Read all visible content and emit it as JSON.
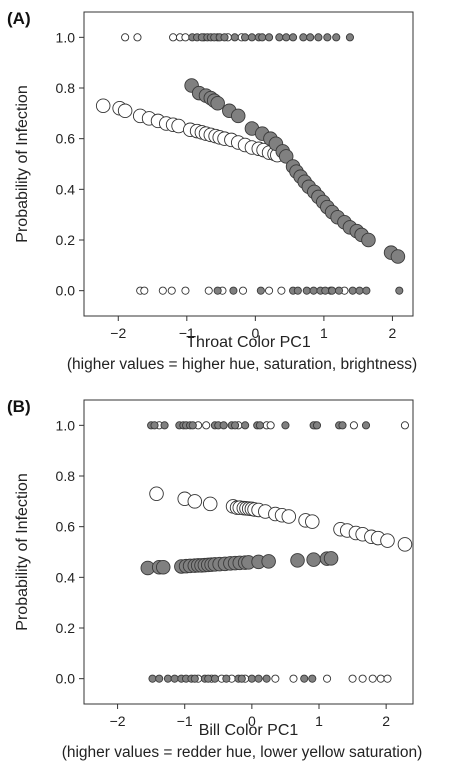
{
  "chart_data": [
    {
      "panel_label": "(A)",
      "type": "scatter",
      "xlabel": "Throat Color PC1",
      "xlabel_note": "(higher values = higher hue, saturation, brightness)",
      "ylabel": "Probability of Infection",
      "xlim": [
        -2.5,
        2.3
      ],
      "ylim": [
        -0.1,
        1.1
      ],
      "xticks": [
        -2,
        -1,
        0,
        1,
        2
      ],
      "yticks": [
        0.0,
        0.2,
        0.4,
        0.6,
        0.8,
        1.0
      ],
      "ytick_labels": [
        "0.0",
        "0.2",
        "0.4",
        "0.6",
        "0.8",
        "1.0"
      ],
      "grid": false,
      "series": [
        {
          "color": "#ffffff",
          "role": "predicted",
          "points": [
            [
              -2.22,
              0.73
            ],
            [
              -1.98,
              0.72
            ],
            [
              -1.9,
              0.71
            ],
            [
              -1.68,
              0.69
            ],
            [
              -1.55,
              0.68
            ],
            [
              -1.42,
              0.67
            ],
            [
              -1.3,
              0.66
            ],
            [
              -1.2,
              0.655
            ],
            [
              -1.12,
              0.65
            ],
            [
              -0.95,
              0.635
            ],
            [
              -0.85,
              0.63
            ],
            [
              -0.78,
              0.625
            ],
            [
              -0.72,
              0.62
            ],
            [
              -0.65,
              0.615
            ],
            [
              -0.58,
              0.61
            ],
            [
              -0.52,
              0.605
            ],
            [
              -0.45,
              0.6
            ],
            [
              -0.35,
              0.595
            ],
            [
              -0.25,
              0.585
            ],
            [
              -0.15,
              0.575
            ],
            [
              -0.05,
              0.565
            ],
            [
              0.05,
              0.56
            ],
            [
              0.12,
              0.555
            ],
            [
              0.2,
              0.545
            ],
            [
              0.28,
              0.54
            ],
            [
              0.32,
              0.535
            ]
          ]
        },
        {
          "color": "#808080",
          "role": "predicted",
          "points": [
            [
              -0.93,
              0.81
            ],
            [
              -0.82,
              0.78
            ],
            [
              -0.72,
              0.77
            ],
            [
              -0.65,
              0.76
            ],
            [
              -0.6,
              0.75
            ],
            [
              -0.55,
              0.74
            ],
            [
              -0.38,
              0.71
            ],
            [
              -0.25,
              0.69
            ],
            [
              -0.05,
              0.64
            ],
            [
              0.1,
              0.62
            ],
            [
              0.22,
              0.6
            ],
            [
              0.3,
              0.58
            ],
            [
              0.4,
              0.55
            ],
            [
              0.45,
              0.53
            ],
            [
              0.55,
              0.49
            ],
            [
              0.6,
              0.47
            ],
            [
              0.66,
              0.45
            ],
            [
              0.72,
              0.43
            ],
            [
              0.78,
              0.41
            ],
            [
              0.86,
              0.39
            ],
            [
              0.92,
              0.37
            ],
            [
              0.99,
              0.35
            ],
            [
              1.05,
              0.33
            ],
            [
              1.12,
              0.31
            ],
            [
              1.2,
              0.29
            ],
            [
              1.3,
              0.27
            ],
            [
              1.38,
              0.25
            ],
            [
              1.48,
              0.235
            ],
            [
              1.55,
              0.22
            ],
            [
              1.65,
              0.2
            ],
            [
              1.98,
              0.15
            ],
            [
              2.08,
              0.135
            ]
          ]
        },
        {
          "color": "#ffffff",
          "role": "observed",
          "points": [
            [
              -1.9,
              1.0
            ],
            [
              -1.2,
              1.0
            ],
            [
              -1.1,
              1.0
            ],
            [
              -1.02,
              1.0
            ],
            [
              -0.75,
              1.0
            ],
            [
              -0.55,
              1.0
            ],
            [
              -0.4,
              1.0
            ],
            [
              -0.2,
              1.0
            ],
            [
              -1.72,
              1.0
            ],
            [
              -1.68,
              0.0
            ],
            [
              -1.62,
              0.0
            ],
            [
              -1.35,
              0.0
            ],
            [
              -1.22,
              0.0
            ],
            [
              -1.02,
              0.0
            ],
            [
              -0.68,
              0.0
            ],
            [
              -0.48,
              0.0
            ],
            [
              -0.18,
              0.0
            ],
            [
              0.2,
              0.0
            ],
            [
              0.38,
              0.0
            ],
            [
              1.1,
              0.0
            ],
            [
              1.3,
              0.0
            ]
          ]
        },
        {
          "color": "#808080",
          "role": "observed",
          "points": [
            [
              -0.92,
              1.0
            ],
            [
              -0.85,
              1.0
            ],
            [
              -0.78,
              1.0
            ],
            [
              -0.7,
              1.0
            ],
            [
              -0.65,
              1.0
            ],
            [
              -0.6,
              1.0
            ],
            [
              -0.52,
              1.0
            ],
            [
              -0.45,
              1.0
            ],
            [
              -0.3,
              1.0
            ],
            [
              -0.15,
              1.0
            ],
            [
              -0.05,
              1.0
            ],
            [
              0.05,
              1.0
            ],
            [
              0.1,
              1.0
            ],
            [
              0.2,
              1.0
            ],
            [
              0.35,
              1.0
            ],
            [
              0.45,
              1.0
            ],
            [
              0.55,
              1.0
            ],
            [
              0.7,
              1.0
            ],
            [
              0.8,
              1.0
            ],
            [
              0.92,
              1.0
            ],
            [
              1.05,
              1.0
            ],
            [
              1.18,
              1.0
            ],
            [
              1.38,
              1.0
            ],
            [
              -0.55,
              0.0
            ],
            [
              -0.32,
              0.0
            ],
            [
              0.08,
              0.0
            ],
            [
              0.55,
              0.0
            ],
            [
              0.62,
              0.0
            ],
            [
              0.75,
              0.0
            ],
            [
              0.85,
              0.0
            ],
            [
              0.95,
              0.0
            ],
            [
              1.02,
              0.0
            ],
            [
              1.12,
              0.0
            ],
            [
              1.22,
              0.0
            ],
            [
              1.42,
              0.0
            ],
            [
              1.52,
              0.0
            ],
            [
              1.62,
              0.0
            ],
            [
              2.1,
              0.0
            ]
          ]
        }
      ]
    },
    {
      "panel_label": "(B)",
      "type": "scatter",
      "xlabel": "Bill Color PC1",
      "xlabel_note": "(higher values = redder hue, lower yellow saturation)",
      "ylabel": "Probability of Infection",
      "xlim": [
        -2.5,
        2.4
      ],
      "ylim": [
        -0.1,
        1.1
      ],
      "xticks": [
        -2,
        -1,
        0,
        1,
        2
      ],
      "yticks": [
        0.0,
        0.2,
        0.4,
        0.6,
        0.8,
        1.0
      ],
      "ytick_labels": [
        "0.0",
        "0.2",
        "0.4",
        "0.6",
        "0.8",
        "1.0"
      ],
      "grid": false,
      "series": [
        {
          "color": "#ffffff",
          "role": "predicted",
          "points": [
            [
              -1.42,
              0.73
            ],
            [
              -1.0,
              0.71
            ],
            [
              -0.85,
              0.7
            ],
            [
              -0.62,
              0.69
            ],
            [
              -0.28,
              0.68
            ],
            [
              -0.22,
              0.675
            ],
            [
              -0.18,
              0.675
            ],
            [
              -0.12,
              0.673
            ],
            [
              -0.08,
              0.672
            ],
            [
              -0.04,
              0.671
            ],
            [
              0.0,
              0.67
            ],
            [
              0.04,
              0.668
            ],
            [
              0.1,
              0.666
            ],
            [
              0.2,
              0.66
            ],
            [
              0.35,
              0.65
            ],
            [
              0.45,
              0.645
            ],
            [
              0.55,
              0.64
            ],
            [
              0.8,
              0.625
            ],
            [
              0.9,
              0.62
            ],
            [
              1.32,
              0.59
            ],
            [
              1.42,
              0.585
            ],
            [
              1.55,
              0.575
            ],
            [
              1.65,
              0.57
            ],
            [
              1.78,
              0.56
            ],
            [
              1.88,
              0.555
            ],
            [
              2.02,
              0.545
            ],
            [
              2.28,
              0.53
            ]
          ]
        },
        {
          "color": "#808080",
          "role": "predicted",
          "points": [
            [
              -1.55,
              0.437
            ],
            [
              -1.38,
              0.44
            ],
            [
              -1.32,
              0.44
            ],
            [
              -1.05,
              0.443
            ],
            [
              -0.98,
              0.444
            ],
            [
              -0.92,
              0.445
            ],
            [
              -0.85,
              0.446
            ],
            [
              -0.8,
              0.447
            ],
            [
              -0.75,
              0.447
            ],
            [
              -0.7,
              0.448
            ],
            [
              -0.65,
              0.449
            ],
            [
              -0.6,
              0.45
            ],
            [
              -0.55,
              0.451
            ],
            [
              -0.48,
              0.452
            ],
            [
              -0.4,
              0.453
            ],
            [
              -0.32,
              0.455
            ],
            [
              -0.25,
              0.456
            ],
            [
              -0.18,
              0.457
            ],
            [
              -0.1,
              0.458
            ],
            [
              -0.05,
              0.459
            ],
            [
              0.1,
              0.461
            ],
            [
              0.25,
              0.463
            ],
            [
              0.68,
              0.467
            ],
            [
              0.92,
              0.47
            ],
            [
              1.12,
              0.474
            ],
            [
              1.18,
              0.475
            ]
          ]
        },
        {
          "color": "#ffffff",
          "role": "observed",
          "points": [
            [
              -1.38,
              1.0
            ],
            [
              -0.8,
              1.0
            ],
            [
              -0.68,
              1.0
            ],
            [
              -0.2,
              1.0
            ],
            [
              0.22,
              1.0
            ],
            [
              0.28,
              1.0
            ],
            [
              0.95,
              1.0
            ],
            [
              1.52,
              1.0
            ],
            [
              2.28,
              1.0
            ],
            [
              -0.8,
              0.0
            ],
            [
              -0.6,
              0.0
            ],
            [
              -0.45,
              0.0
            ],
            [
              -0.3,
              0.0
            ],
            [
              -0.1,
              0.0
            ],
            [
              0.35,
              0.0
            ],
            [
              0.62,
              0.0
            ],
            [
              1.12,
              0.0
            ],
            [
              1.5,
              0.0
            ],
            [
              1.65,
              0.0
            ],
            [
              1.8,
              0.0
            ],
            [
              1.92,
              0.0
            ],
            [
              2.02,
              0.0
            ]
          ]
        },
        {
          "color": "#808080",
          "role": "observed",
          "points": [
            [
              -1.5,
              1.0
            ],
            [
              -1.45,
              1.0
            ],
            [
              -1.3,
              1.0
            ],
            [
              -1.08,
              1.0
            ],
            [
              -1.02,
              1.0
            ],
            [
              -0.98,
              1.0
            ],
            [
              -0.92,
              1.0
            ],
            [
              -0.88,
              1.0
            ],
            [
              -0.55,
              1.0
            ],
            [
              -0.5,
              1.0
            ],
            [
              -0.42,
              1.0
            ],
            [
              -0.3,
              1.0
            ],
            [
              -0.25,
              1.0
            ],
            [
              -0.1,
              1.0
            ],
            [
              0.08,
              1.0
            ],
            [
              0.12,
              1.0
            ],
            [
              0.5,
              1.0
            ],
            [
              0.92,
              1.0
            ],
            [
              0.97,
              1.0
            ],
            [
              1.3,
              1.0
            ],
            [
              1.35,
              1.0
            ],
            [
              1.7,
              1.0
            ],
            [
              -1.48,
              0.0
            ],
            [
              -1.38,
              0.0
            ],
            [
              -1.25,
              0.0
            ],
            [
              -1.15,
              0.0
            ],
            [
              -1.05,
              0.0
            ],
            [
              -0.98,
              0.0
            ],
            [
              -0.9,
              0.0
            ],
            [
              -0.85,
              0.0
            ],
            [
              -0.7,
              0.0
            ],
            [
              -0.65,
              0.0
            ],
            [
              -0.55,
              0.0
            ],
            [
              -0.38,
              0.0
            ],
            [
              -0.2,
              0.0
            ],
            [
              -0.15,
              0.0
            ],
            [
              0.0,
              0.0
            ],
            [
              0.1,
              0.0
            ],
            [
              0.22,
              0.0
            ],
            [
              0.78,
              0.0
            ],
            [
              0.9,
              0.0
            ]
          ]
        }
      ]
    }
  ]
}
